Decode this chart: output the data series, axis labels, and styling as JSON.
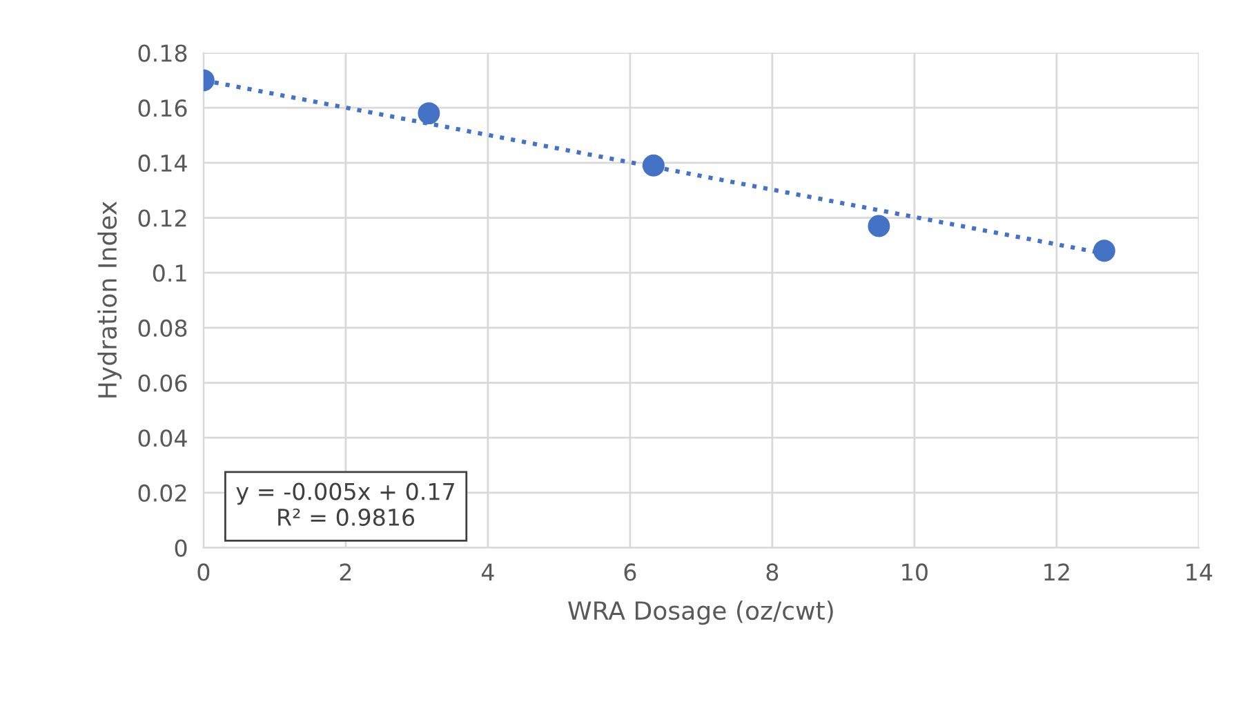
{
  "chart_data": {
    "type": "scatter",
    "xlabel": "WRA Dosage (oz/cwt)",
    "ylabel": "Hydration Index",
    "series": [
      {
        "color": "#4472c4",
        "marker": "circle",
        "x": [
          0,
          3.17,
          6.33,
          9.5,
          12.67
        ],
        "values": [
          0.17,
          0.158,
          0.139,
          0.117,
          0.108
        ]
      },
      {
        "type": "line",
        "color": "#4472c4",
        "line_style": "dotted",
        "x": [
          0,
          12.67
        ],
        "values": [
          0.17,
          0.107
        ]
      }
    ],
    "annotations": [
      "y = -0.005x + 0.17\nR² = 0.9816"
    ],
    "xlim": [
      0,
      14
    ],
    "xticks": [
      0,
      2,
      4,
      6,
      8,
      10,
      12,
      14
    ],
    "ylim": [
      0,
      0.18
    ],
    "yticks": [
      0,
      0.02,
      0.04,
      0.06,
      0.08,
      0.1,
      0.12,
      0.14,
      0.16,
      0.18
    ],
    "grid": true,
    "legend": false
  }
}
